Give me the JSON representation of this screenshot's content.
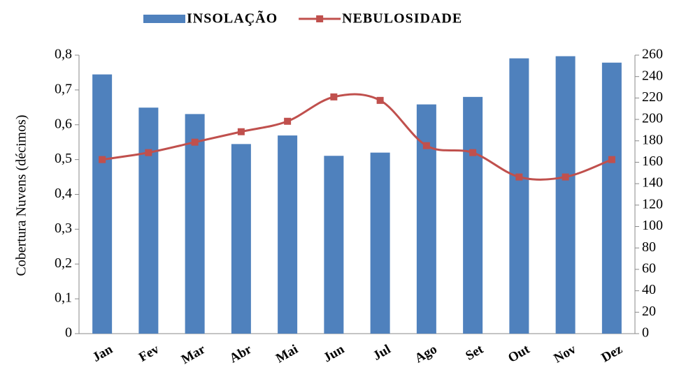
{
  "chart_data": {
    "type": "bar-line",
    "y_label": "Cobertura Nuvens (décimos)",
    "categories": [
      "Jan",
      "Fev",
      "Mar",
      "Abr",
      "Mai",
      "Jun",
      "Jul",
      "Ago",
      "Set",
      "Out",
      "Nov",
      "Dez"
    ],
    "series": [
      {
        "name": "INSOLAÇÃO",
        "type": "bar",
        "color": "#4f81bd",
        "axis": "y2",
        "values": [
          242,
          211,
          205,
          177,
          185,
          166,
          169,
          214,
          221,
          257,
          259,
          253
        ]
      },
      {
        "name": "NEBULOSIDADE",
        "type": "line",
        "color": "#c0504d",
        "axis": "y",
        "values": [
          0.5,
          0.52,
          0.55,
          0.58,
          0.61,
          0.68,
          0.67,
          0.54,
          0.52,
          0.45,
          0.45,
          0.5
        ]
      }
    ],
    "ylim": [
      0,
      0.8
    ],
    "yticks": [
      0,
      {
        "value": 0.1,
        "label": "0,1"
      },
      {
        "value": 0.2,
        "label": "0,2"
      },
      {
        "value": 0.3,
        "label": "0,3"
      },
      {
        "value": 0.4,
        "label": "0,4"
      },
      {
        "value": 0.5,
        "label": "0,5"
      },
      {
        "value": 0.6,
        "label": "0,6"
      },
      {
        "value": 0.7,
        "label": "0,7"
      },
      {
        "value": 0.8,
        "label": "0,8"
      }
    ],
    "y2lim": [
      0,
      260
    ],
    "y2ticks": [
      0,
      20,
      40,
      60,
      80,
      100,
      120,
      140,
      160,
      180,
      200,
      220,
      240,
      260
    ],
    "legend": "top"
  }
}
